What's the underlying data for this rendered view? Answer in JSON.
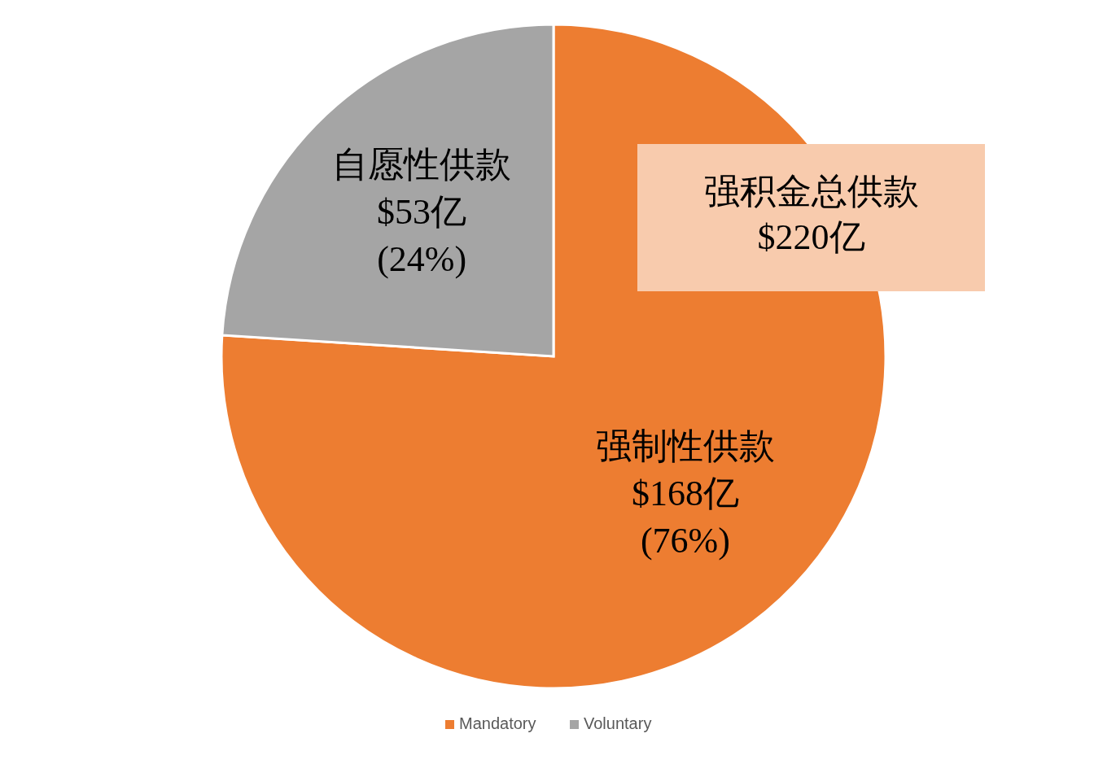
{
  "chart_data": {
    "type": "pie",
    "categories": [
      "Mandatory",
      "Voluntary"
    ],
    "values": [
      168,
      53
    ],
    "colors": [
      "#ed7d31",
      "#a5a5a5"
    ],
    "value_labels": [
      "强制性供款\n$168亿\n(76%)",
      "自愿性供款\n$53亿\n(24%)"
    ],
    "annotations": [
      "强积金总供款\n$220亿"
    ],
    "legend": "bottom"
  }
}
